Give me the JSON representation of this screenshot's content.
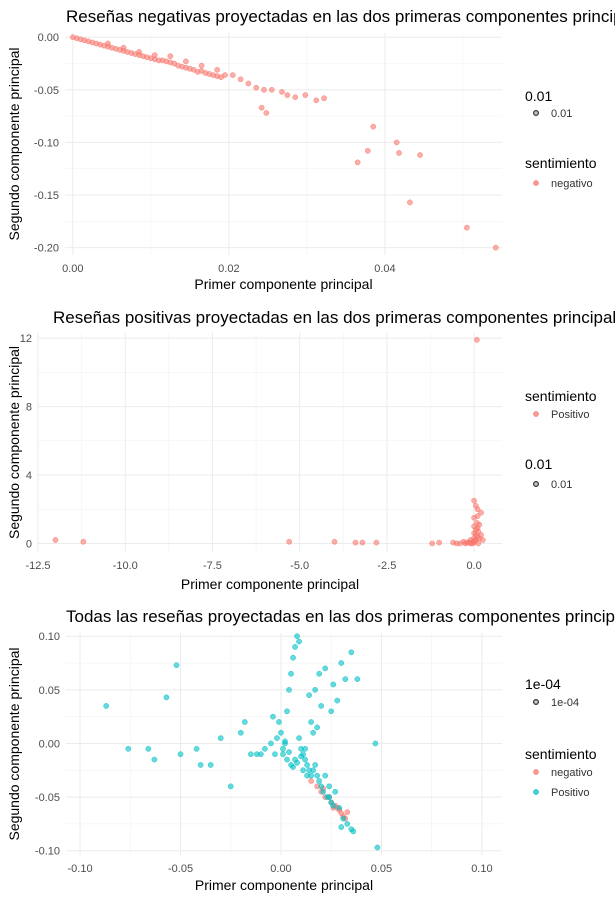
{
  "colors": {
    "negativo": "#F8766D",
    "Positivo": "#00BFC4",
    "size_key": "#333333",
    "grid": "#EBEBEB",
    "text": "#4D4D4D"
  },
  "chart_data": [
    {
      "type": "scatter",
      "title": "Reseñas negativas proyectadas en las dos primeras componentes principales",
      "xlabel": "Primer componente principal",
      "ylabel": "Segundo componente principal",
      "xlim": [
        -0.001,
        0.055
      ],
      "ylim": [
        -0.207,
        0.004
      ],
      "xticks": [
        0,
        0.02,
        0.04
      ],
      "xtick_labels": [
        "0.00",
        "0.02",
        "0.04"
      ],
      "yticks": [
        0,
        -0.05,
        -0.1,
        -0.15,
        -0.2
      ],
      "ytick_labels": [
        "0.00",
        "-0.05",
        "-0.10",
        "-0.15",
        "-0.20"
      ],
      "grid": true,
      "legend_position": "right",
      "legend": [
        {
          "title": "0.01",
          "entries": [
            {
              "label": "0.01",
              "key": "size_key"
            }
          ]
        },
        {
          "title": "sentimiento",
          "entries": [
            {
              "label": "negativo",
              "key": "negativo"
            }
          ]
        }
      ],
      "series": [
        {
          "name": "negativo",
          "color_key": "negativo",
          "x": [
            0,
            0.0005,
            0.001,
            0.0015,
            0.002,
            0.0025,
            0.003,
            0.0035,
            0.004,
            0.0045,
            0.005,
            0.0055,
            0.006,
            0.0065,
            0.007,
            0.0075,
            0.008,
            0.0085,
            0.009,
            0.0095,
            0.01,
            0.0105,
            0.011,
            0.0115,
            0.012,
            0.0125,
            0.013,
            0.0135,
            0.014,
            0.0145,
            0.015,
            0.0155,
            0.016,
            0.0165,
            0.017,
            0.0175,
            0.018,
            0.0185,
            0.019,
            0.0195,
            0.0045,
            0.0065,
            0.0085,
            0.0105,
            0.0125,
            0.0145,
            0.0165,
            0.0185,
            0.0205,
            0.0215,
            0.0225,
            0.0235,
            0.0245,
            0.0255,
            0.0268,
            0.0275,
            0.0285,
            0.0298,
            0.0312,
            0.0322,
            0.0248,
            0.0242,
            0.0365,
            0.0378,
            0.0385,
            0.0415,
            0.0418,
            0.0445,
            0.0432,
            0.0505,
            0.0542
          ],
          "y": [
            0,
            -0.001,
            -0.002,
            -0.003,
            -0.004,
            -0.005,
            -0.006,
            -0.007,
            -0.008,
            -0.009,
            -0.01,
            -0.011,
            -0.012,
            -0.013,
            -0.014,
            -0.015,
            -0.016,
            -0.017,
            -0.018,
            -0.019,
            -0.02,
            -0.021,
            -0.022,
            -0.022,
            -0.023,
            -0.024,
            -0.025,
            -0.027,
            -0.028,
            -0.029,
            -0.03,
            -0.031,
            -0.033,
            -0.032,
            -0.034,
            -0.035,
            -0.036,
            -0.037,
            -0.038,
            -0.036,
            -0.006,
            -0.01,
            -0.014,
            -0.017,
            -0.018,
            -0.023,
            -0.027,
            -0.031,
            -0.036,
            -0.04,
            -0.044,
            -0.048,
            -0.05,
            -0.05,
            -0.052,
            -0.055,
            -0.057,
            -0.055,
            -0.06,
            -0.058,
            -0.072,
            -0.067,
            -0.119,
            -0.108,
            -0.085,
            -0.1,
            -0.11,
            -0.112,
            -0.157,
            -0.181,
            -0.2
          ]
        }
      ]
    },
    {
      "type": "scatter",
      "title": "Reseñas positivas proyectadas en las dos primeras componentes principales",
      "xlabel": "Primer componente principal",
      "ylabel": "Segundo componente principal",
      "xlim": [
        -12.5,
        0.8
      ],
      "ylim": [
        -0.5,
        12.3
      ],
      "xticks": [
        -12.5,
        -10,
        -7.5,
        -5,
        -2.5,
        0
      ],
      "xtick_labels": [
        "-12.5",
        "-10.0",
        "-7.5",
        "-5.0",
        "-2.5",
        "0.0"
      ],
      "yticks": [
        0,
        4,
        8,
        12
      ],
      "ytick_labels": [
        "0",
        "4",
        "8",
        "12"
      ],
      "grid": true,
      "legend_position": "right",
      "legend": [
        {
          "title": "sentimiento",
          "entries": [
            {
              "label": "Positivo",
              "key": "negativo"
            }
          ]
        },
        {
          "title": "0.01",
          "entries": [
            {
              "label": "0.01",
              "key": "size_key"
            }
          ]
        }
      ],
      "series": [
        {
          "name": "Positivo",
          "color_key": "negativo",
          "x": [
            -12,
            -11.2,
            -5.3,
            -4.0,
            -3.4,
            -3.2,
            -2.8,
            -1.2,
            -1.0,
            -0.6,
            -0.5,
            -0.4,
            -0.3,
            -0.25,
            -0.2,
            -0.15,
            -0.1,
            -0.1,
            -0.05,
            -0.05,
            0,
            0,
            0,
            0,
            0,
            0,
            0.02,
            0.05,
            0.05,
            0.05,
            0.08,
            0.1,
            0.1,
            0.1,
            0.12,
            0.15,
            0.15,
            0.2,
            0.2,
            0.25,
            0.05,
            0.1,
            0.08,
            0.12
          ],
          "y": [
            0.2,
            0.1,
            0.1,
            0.1,
            0.05,
            0.05,
            0.05,
            0,
            0.05,
            0.05,
            0,
            0,
            0.1,
            0,
            0.05,
            0.05,
            0,
            0.2,
            0.1,
            0,
            0.05,
            0.3,
            0.6,
            1.0,
            1.5,
            2.5,
            0.15,
            0.2,
            0.5,
            0.8,
            1.2,
            1.6,
            2.0,
            0.4,
            0.7,
            0.3,
            1.1,
            0.5,
            1.8,
            0.2,
            2.2,
            0.9,
            11.9,
            0.0
          ]
        }
      ]
    },
    {
      "type": "scatter",
      "title": "Todas las reseñas proyectadas en las dos primeras componentes principales",
      "xlabel": "Primer componente principal",
      "ylabel": "Segundo componente principal",
      "xlim": [
        -0.107,
        0.11
      ],
      "ylim": [
        -0.104,
        0.103
      ],
      "xticks": [
        -0.1,
        -0.05,
        0,
        0.05,
        0.1
      ],
      "xtick_labels": [
        "-0.10",
        "-0.05",
        "0.00",
        "0.05",
        "0.10"
      ],
      "yticks": [
        0.1,
        0.05,
        0,
        -0.05,
        -0.1
      ],
      "ytick_labels": [
        "0.10",
        "0.05",
        "0.00",
        "-0.05",
        "-0.10"
      ],
      "grid": true,
      "legend_position": "right",
      "legend": [
        {
          "title": "1e-04",
          "entries": [
            {
              "label": "1e-04",
              "key": "size_key"
            }
          ]
        },
        {
          "title": "sentimiento",
          "entries": [
            {
              "label": "negativo",
              "key": "negativo"
            },
            {
              "label": "Positivo",
              "key": "Positivo"
            }
          ]
        }
      ],
      "series": [
        {
          "name": "negativo",
          "color_key": "negativo",
          "x": [
            0.015,
            0.018,
            0.02,
            0.022,
            0.025,
            0.026,
            0.028,
            0.03,
            0.032,
            0.024,
            0.027,
            0.021,
            0.029,
            0.031,
            0.033
          ],
          "y": [
            -0.035,
            -0.04,
            -0.045,
            -0.05,
            -0.055,
            -0.06,
            -0.06,
            -0.065,
            -0.07,
            -0.05,
            -0.058,
            -0.042,
            -0.062,
            -0.068,
            -0.064
          ]
        },
        {
          "name": "Positivo",
          "color_key": "Positivo",
          "x": [
            -0.087,
            -0.076,
            -0.066,
            -0.063,
            -0.057,
            -0.052,
            -0.05,
            -0.042,
            -0.04,
            -0.035,
            -0.03,
            -0.025,
            -0.02,
            -0.018,
            -0.015,
            -0.012,
            -0.01,
            -0.008,
            -0.005,
            -0.004,
            -0.003,
            -0.002,
            -0.001,
            0,
            0.001,
            0.002,
            0.003,
            0.004,
            0.005,
            0.006,
            0.007,
            0.008,
            0.009,
            0.01,
            0.011,
            0.012,
            0.013,
            0.014,
            0.015,
            0.016,
            0.017,
            0.018,
            0.019,
            0.02,
            0.021,
            0.022,
            0.023,
            0.024,
            0.025,
            0.026,
            0.028,
            0.03,
            0.032,
            0.035,
            0.038,
            0.047,
            0.048,
            0.003,
            0.005,
            0.008,
            0.01,
            0.012,
            0.015,
            0.018,
            0.02,
            0.025,
            0.03,
            0.035,
            0.006,
            0.009,
            0.011,
            0.004,
            0.007,
            0.013,
            0.016,
            0.002,
            0.001,
            0.014,
            0.017,
            0.019,
            0.022,
            0.024,
            0.027,
            0.029,
            0.031,
            0.033,
            0.036,
            0.026
          ],
          "y": [
            0.035,
            -0.005,
            -0.005,
            -0.015,
            0.043,
            0.073,
            -0.01,
            -0.005,
            -0.02,
            -0.02,
            0.005,
            -0.04,
            0.01,
            0.02,
            -0.01,
            -0.01,
            -0.01,
            -0.005,
            0,
            0.025,
            -0.01,
            0.005,
            0.02,
            0.01,
            -0.01,
            0.0,
            0.03,
            0.05,
            0.065,
            0.08,
            0.09,
            0.1,
            0.095,
            -0.005,
            -0.01,
            -0.015,
            -0.02,
            -0.025,
            -0.03,
            -0.025,
            -0.02,
            -0.03,
            -0.035,
            -0.04,
            -0.045,
            -0.03,
            -0.05,
            -0.05,
            -0.055,
            0.055,
            0.04,
            0.075,
            0.06,
            0.085,
            0.06,
            0.0,
            -0.097,
            -0.015,
            -0.02,
            -0.018,
            -0.012,
            -0.005,
            0.02,
            0.015,
            0.035,
            0.03,
            -0.078,
            -0.08,
            -0.022,
            0.005,
            -0.025,
            -0.008,
            -0.015,
            -0.03,
            0.01,
            0.002,
            -0.005,
            0.045,
            0.05,
            0.065,
            0.07,
            -0.04,
            -0.045,
            -0.06,
            -0.07,
            -0.075,
            -0.082,
            -0.058
          ]
        }
      ]
    }
  ]
}
